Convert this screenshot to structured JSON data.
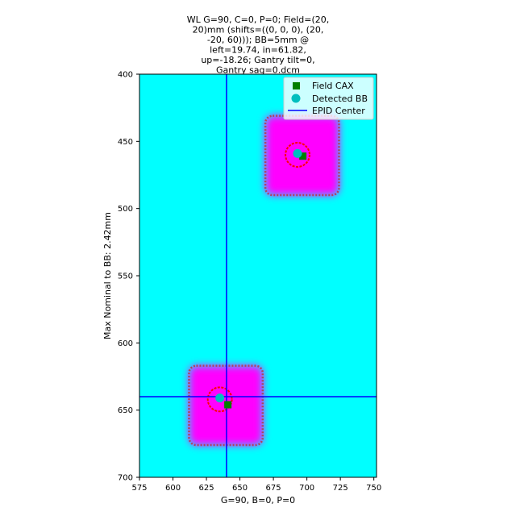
{
  "chart_data": {
    "type": "scatter",
    "title": "WL G=90, C=0, P=0; Field=(20,\n20)mm (shifts=((0, 0, 0), (20,\n-20, 60))); BB=5mm @\nleft=19.74, in=61.82,\nup=-18.26; Gantry tilt=0,\nGantry sag=0.dcm",
    "xlabel": "G=90, B=0, P=0",
    "ylabel": "Max Nominal to BB: 2.42mm",
    "xlim": [
      575,
      752
    ],
    "ylim": [
      700,
      400
    ],
    "y_inverted": true,
    "xticks": [
      575,
      600,
      625,
      650,
      675,
      700,
      725,
      750
    ],
    "yticks": [
      400,
      450,
      500,
      550,
      600,
      650,
      700
    ],
    "background_color": "#00ffff",
    "grid": false,
    "legend_position": "top-right",
    "legend": [
      {
        "label": "Field CAX",
        "marker": "square",
        "color": "#008000"
      },
      {
        "label": "Detected BB",
        "marker": "circle",
        "color": "#00bfbf"
      },
      {
        "label": "EPID Center",
        "marker": "line",
        "color": "#0000ff"
      }
    ],
    "fields": [
      {
        "x_range": [
          669,
          724
        ],
        "y_range": [
          431,
          490
        ],
        "color": "#ff00ff",
        "edge_color": "#b04060"
      },
      {
        "x_range": [
          612,
          667
        ],
        "y_range": [
          617,
          676
        ],
        "color": "#ff00ff",
        "edge_color": "#b04060"
      }
    ],
    "bb_outlines": [
      {
        "x": 693,
        "y": 460,
        "r": 9,
        "color": "#ff0000"
      },
      {
        "x": 635,
        "y": 642,
        "r": 9,
        "color": "#ff0000"
      }
    ],
    "series": [
      {
        "name": "Field CAX",
        "marker": "square",
        "color": "#008000",
        "points": [
          [
            697,
            461
          ],
          [
            641,
            646
          ]
        ]
      },
      {
        "name": "Detected BB",
        "marker": "circle",
        "color": "#00bfbf",
        "points": [
          [
            693,
            459
          ],
          [
            635,
            641
          ]
        ]
      }
    ],
    "epid_center": {
      "x": 640,
      "y": 640,
      "color": "#0000ff"
    }
  }
}
